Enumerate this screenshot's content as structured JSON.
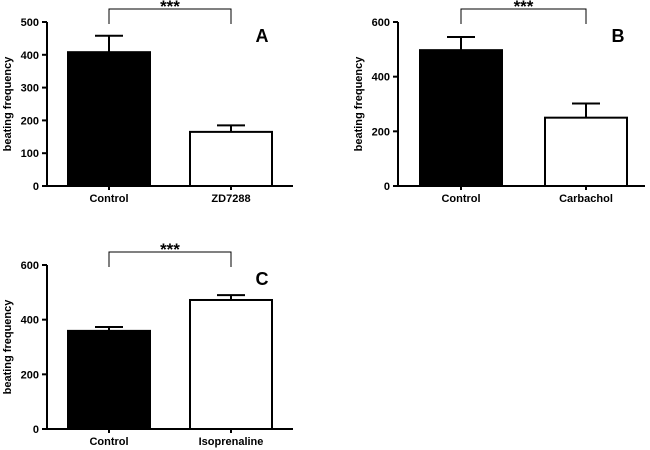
{
  "chart_data": [
    {
      "type": "bar",
      "panel_label": "A",
      "ylabel": "beating frequency",
      "ylim": [
        0,
        500
      ],
      "yticks": [
        0,
        100,
        200,
        300,
        400,
        500
      ],
      "categories": [
        "Control",
        "ZD7288"
      ],
      "values": [
        408,
        165
      ],
      "errors": [
        50,
        20
      ],
      "fills": [
        "#000000",
        "#ffffff"
      ],
      "significance": "***"
    },
    {
      "type": "bar",
      "panel_label": "B",
      "ylabel": "beating frequency",
      "ylim": [
        0,
        600
      ],
      "yticks": [
        0,
        200,
        400,
        600
      ],
      "categories": [
        "Control",
        "Carbachol"
      ],
      "values": [
        497,
        250
      ],
      "errors": [
        48,
        52
      ],
      "fills": [
        "#000000",
        "#ffffff"
      ],
      "significance": "***"
    },
    {
      "type": "bar",
      "panel_label": "C",
      "ylabel": "beating frequency",
      "ylim": [
        0,
        600
      ],
      "yticks": [
        0,
        200,
        400,
        600
      ],
      "categories": [
        "Control",
        "Isoprenaline"
      ],
      "values": [
        359,
        472
      ],
      "errors": [
        14,
        18
      ],
      "fills": [
        "#000000",
        "#ffffff"
      ],
      "significance": "***"
    }
  ]
}
